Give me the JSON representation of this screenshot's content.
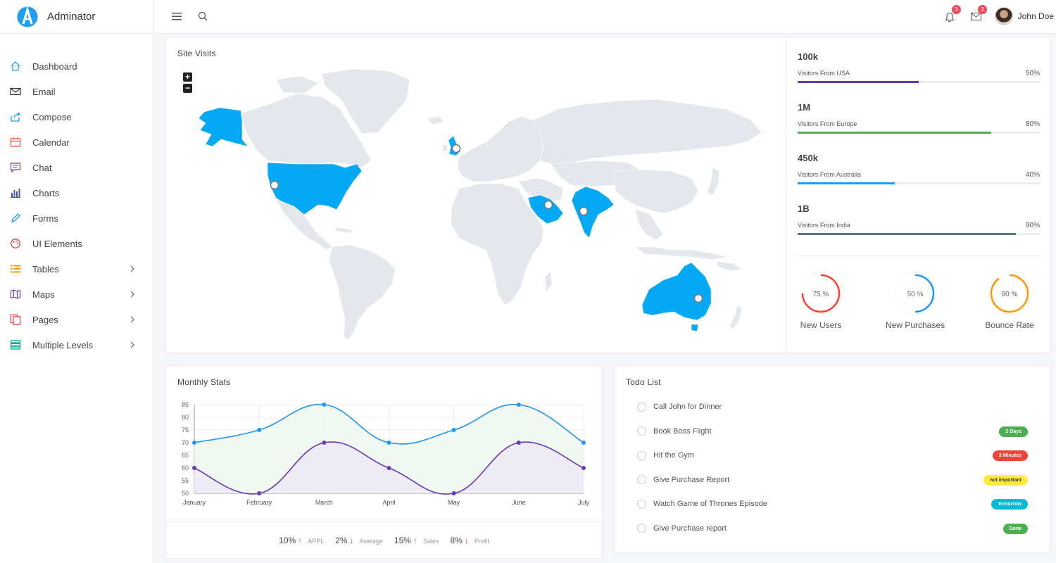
{
  "brand": {
    "name": "Adminator",
    "logo_letter": "A"
  },
  "sidebar": {
    "items": [
      {
        "label": "Dashboard",
        "icon": "home-icon",
        "color": "#1e9ff2"
      },
      {
        "label": "Email",
        "icon": "mail-icon",
        "color": "#333333"
      },
      {
        "label": "Compose",
        "icon": "share-icon",
        "color": "#1e9ff2"
      },
      {
        "label": "Calendar",
        "icon": "calendar-icon",
        "color": "#ff5722"
      },
      {
        "label": "Chat",
        "icon": "chat-icon",
        "color": "#673ab7"
      },
      {
        "label": "Charts",
        "icon": "bar-chart-icon",
        "color": "#3f51b5"
      },
      {
        "label": "Forms",
        "icon": "pencil-icon",
        "color": "#1e9ff2"
      },
      {
        "label": "UI Elements",
        "icon": "palette-icon",
        "color": "#e53935"
      },
      {
        "label": "Tables",
        "icon": "list-icon",
        "color": "#ff9800"
      },
      {
        "label": "Maps",
        "icon": "map-icon",
        "color": "#673ab7"
      },
      {
        "label": "Pages",
        "icon": "copy-icon",
        "color": "#e53935"
      },
      {
        "label": "Multiple Levels",
        "icon": "layers-icon",
        "color": "#009688"
      }
    ]
  },
  "topbar": {
    "notifications_count": "3",
    "messages_count": "3",
    "user_name": "John Doe"
  },
  "site_visits": {
    "title": "Site Visits",
    "zoom_in": "+",
    "zoom_out": "−",
    "stats": [
      {
        "value": "100k",
        "label": "Visitors From USA",
        "percent": "50%",
        "fraction": 0.5,
        "color": "#673ab7"
      },
      {
        "value": "1M",
        "label": "Visitors From Europe",
        "percent": "80%",
        "fraction": 0.8,
        "color": "#4caf50"
      },
      {
        "value": "450k",
        "label": "Visitors From Australia",
        "percent": "40%",
        "fraction": 0.4,
        "color": "#1e9ff2"
      },
      {
        "value": "1B",
        "label": "Visitors From India",
        "percent": "90%",
        "fraction": 0.9,
        "color": "#5f7a88"
      }
    ],
    "gauges": [
      {
        "label": "New Users",
        "text": "75 %",
        "fraction": 0.75,
        "color": "#f44336"
      },
      {
        "label": "New Purchases",
        "text": "50 %",
        "fraction": 0.5,
        "color": "#2196f3"
      },
      {
        "label": "Bounce Rate",
        "text": "90 %",
        "fraction": 0.9,
        "color": "#ff9800"
      }
    ]
  },
  "monthly_stats": {
    "title": "Monthly Stats",
    "footer": [
      {
        "value": "10%",
        "trend": "up",
        "label": "APPL"
      },
      {
        "value": "2%",
        "trend": "down",
        "label": "Average"
      },
      {
        "value": "15%",
        "trend": "up",
        "label": "Sales"
      },
      {
        "value": "8%",
        "trend": "down",
        "label": "Profit"
      }
    ]
  },
  "chart_data": {
    "type": "line",
    "categories": [
      "January",
      "February",
      "March",
      "April",
      "May",
      "June",
      "July"
    ],
    "series": [
      {
        "values": [
          70,
          75,
          85,
          70,
          75,
          85,
          70
        ],
        "color": "#2196f3",
        "fill": "#eef6ef"
      },
      {
        "values": [
          60,
          50,
          70,
          60,
          50,
          70,
          60
        ],
        "color": "#673ab7",
        "fill": "#ece9f5"
      }
    ],
    "ylim": [
      50,
      85
    ],
    "yticks": [
      50,
      55,
      60,
      65,
      70,
      75,
      80,
      85
    ],
    "grid": true,
    "legend": "none"
  },
  "todo": {
    "title": "Todo List",
    "items": [
      {
        "text": "Call John for Dinner",
        "tag": "",
        "tag_color": ""
      },
      {
        "text": "Book Boss Flight",
        "tag": "2 Days",
        "tag_color": "#4caf50"
      },
      {
        "text": "Hit the Gym",
        "tag": "3 Minutes",
        "tag_color": "#f44336"
      },
      {
        "text": "Give Purchase Report",
        "tag": "not important",
        "tag_color": "#ffeb3b"
      },
      {
        "text": "Watch Game of Thrones Episode",
        "tag": "Tomorrow",
        "tag_color": "#00bcd4"
      },
      {
        "text": "Give Purchase report",
        "tag": "Done",
        "tag_color": "#4caf50"
      }
    ]
  }
}
